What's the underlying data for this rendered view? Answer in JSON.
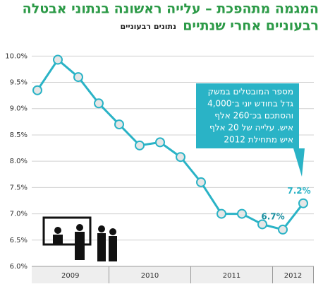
{
  "chart_data": {
    "type": "line",
    "title": [
      "המגמה מתהפכת – עלייה ראשונה בנתוני אבטלה",
      "רבעוניים אחרי שנתיים"
    ],
    "subtitle": "נתונים רבעוניים",
    "categories": [
      null,
      null,
      null,
      null,
      null,
      null,
      null,
      null,
      null,
      null,
      null,
      null,
      null,
      null
    ],
    "x_groups": [
      {
        "label": "2009",
        "count": 4
      },
      {
        "label": "2010",
        "count": 4
      },
      {
        "label": "2011",
        "count": 4
      },
      {
        "label": "2012",
        "count": 2
      }
    ],
    "series": [
      {
        "name": null,
        "color": "#2ab3c6",
        "values": [
          9.35,
          9.93,
          9.6,
          9.1,
          8.7,
          8.3,
          8.36,
          8.08,
          7.6,
          7.0,
          7.0,
          6.8,
          6.7,
          7.2
        ],
        "value_labels": [
          null,
          null,
          null,
          null,
          null,
          null,
          null,
          null,
          null,
          null,
          null,
          null,
          "6.7%",
          "7.2%"
        ]
      }
    ],
    "ylim": [
      6.0,
      10.3
    ],
    "yticks": [
      {
        "value": 6.0,
        "label": "6.0%"
      },
      {
        "value": 6.5,
        "label": "6.5%"
      },
      {
        "value": 7.0,
        "label": "7.0%"
      },
      {
        "value": 7.5,
        "label": "7.5%"
      },
      {
        "value": 8.0,
        "label": "8.0%"
      },
      {
        "value": 8.5,
        "label": "8.5%"
      },
      {
        "value": 9.0,
        "label": "9.0%"
      },
      {
        "value": 9.5,
        "label": "9.5%"
      },
      {
        "value": 10.0,
        "label": "10.0%"
      }
    ],
    "grid": true,
    "annotation": [
      "מספר המובטלים במשק",
      "גדל בחודש יוני ב־4,000",
      "והסתכם בכ־260 אלף",
      "איש. עלייה של 20 אלף",
      "איש מתחילת 2012"
    ]
  }
}
